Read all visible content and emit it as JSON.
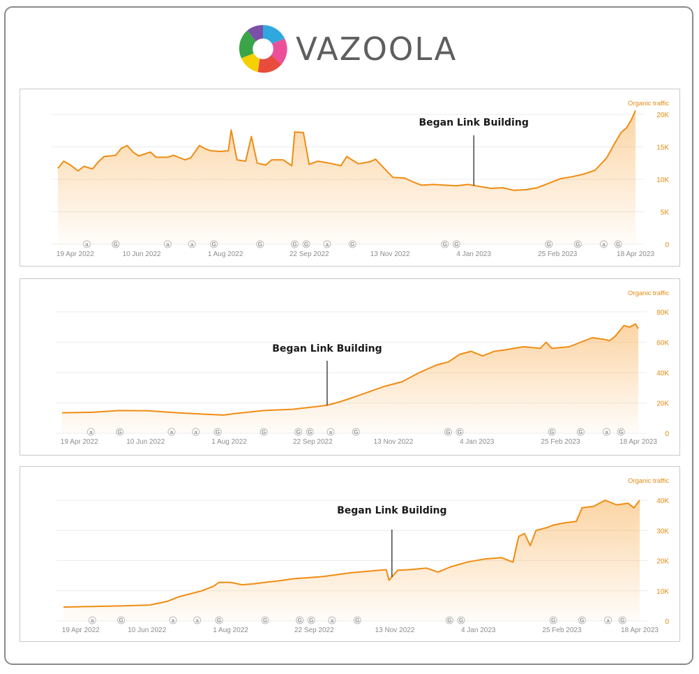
{
  "brand": {
    "name": "VAZOOLA",
    "logo_icon": "ring-logo-icon"
  },
  "colors": {
    "line": "#f08c12",
    "fill": "#f9b25a",
    "grid": "#ececec",
    "axis_text": "#e58a0f",
    "date_text": "#8c8c8c"
  },
  "chart_data": [
    {
      "type": "area",
      "metric_label": "Organic traffic",
      "ylim": [
        0,
        20000
      ],
      "y_ticks": [
        {
          "v": 20000,
          "label": "20K"
        },
        {
          "v": 15000,
          "label": "15K"
        },
        {
          "v": 10000,
          "label": "10K"
        },
        {
          "v": 5000,
          "label": "5K"
        },
        {
          "v": 0,
          "label": "0"
        }
      ],
      "x_ticks": [
        "19 Apr 2022",
        "10 Jun 2022",
        "1 Aug 2022",
        "22 Sep 2022",
        "13 Nov 2022",
        "4 Jan 2023",
        "25 Feb 2023",
        "18 Apr 2023"
      ],
      "badges": [
        "a",
        "G",
        "a",
        "a",
        "G",
        "G",
        "G",
        "G",
        "a",
        "G",
        "G",
        "G",
        "G",
        "G",
        "a",
        "G"
      ],
      "annotation": {
        "text": "Began Link Building",
        "x": 0.72
      },
      "series": [
        {
          "points": [
            [
              0,
              11700
            ],
            [
              0.01,
              12800
            ],
            [
              0.02,
              12300
            ],
            [
              0.035,
              11300
            ],
            [
              0.045,
              12000
            ],
            [
              0.06,
              11600
            ],
            [
              0.07,
              12700
            ],
            [
              0.08,
              13500
            ],
            [
              0.1,
              13700
            ],
            [
              0.11,
              14800
            ],
            [
              0.12,
              15200
            ],
            [
              0.13,
              14200
            ],
            [
              0.14,
              13600
            ],
            [
              0.16,
              14200
            ],
            [
              0.17,
              13400
            ],
            [
              0.19,
              13400
            ],
            [
              0.2,
              13700
            ],
            [
              0.22,
              13000
            ],
            [
              0.23,
              13300
            ],
            [
              0.245,
              15200
            ],
            [
              0.255,
              14700
            ],
            [
              0.265,
              14400
            ],
            [
              0.28,
              14300
            ],
            [
              0.295,
              14400
            ],
            [
              0.3,
              17600
            ],
            [
              0.31,
              13000
            ],
            [
              0.325,
              12800
            ],
            [
              0.335,
              16600
            ],
            [
              0.345,
              12500
            ],
            [
              0.36,
              12200
            ],
            [
              0.37,
              13000
            ],
            [
              0.39,
              13000
            ],
            [
              0.405,
              12100
            ],
            [
              0.41,
              17300
            ],
            [
              0.425,
              17200
            ],
            [
              0.435,
              12300
            ],
            [
              0.45,
              12800
            ],
            [
              0.47,
              12500
            ],
            [
              0.49,
              12100
            ],
            [
              0.5,
              13500
            ],
            [
              0.52,
              12400
            ],
            [
              0.54,
              12700
            ],
            [
              0.55,
              13100
            ],
            [
              0.57,
              11200
            ],
            [
              0.58,
              10300
            ],
            [
              0.6,
              10200
            ],
            [
              0.62,
              9400
            ],
            [
              0.63,
              9100
            ],
            [
              0.65,
              9200
            ],
            [
              0.67,
              9100
            ],
            [
              0.69,
              9000
            ],
            [
              0.71,
              9200
            ],
            [
              0.73,
              8900
            ],
            [
              0.75,
              8600
            ],
            [
              0.77,
              8700
            ],
            [
              0.79,
              8300
            ],
            [
              0.81,
              8400
            ],
            [
              0.83,
              8700
            ],
            [
              0.85,
              9400
            ],
            [
              0.87,
              10100
            ],
            [
              0.89,
              10400
            ],
            [
              0.91,
              10800
            ],
            [
              0.93,
              11400
            ],
            [
              0.95,
              13300
            ],
            [
              0.965,
              15700
            ],
            [
              0.975,
              17200
            ],
            [
              0.985,
              18000
            ],
            [
              0.993,
              19200
            ],
            [
              1,
              20600
            ]
          ]
        }
      ]
    },
    {
      "type": "area",
      "metric_label": "Organic traffic",
      "ylim": [
        0,
        80000
      ],
      "y_ticks": [
        {
          "v": 80000,
          "label": "80K"
        },
        {
          "v": 60000,
          "label": "60K"
        },
        {
          "v": 40000,
          "label": "40K"
        },
        {
          "v": 20000,
          "label": "20K"
        },
        {
          "v": 0,
          "label": "0"
        }
      ],
      "x_ticks": [
        "19 Apr 2022",
        "10 Jun 2022",
        "1 Aug 2022",
        "22 Sep 2022",
        "13 Nov 2022",
        "4 Jan 2023",
        "25 Feb 2023",
        "18 Apr 2023"
      ],
      "badges": [
        "a",
        "G",
        "a",
        "a",
        "G",
        "G",
        "G",
        "G",
        "a",
        "G",
        "G",
        "G",
        "G",
        "G",
        "a",
        "G"
      ],
      "annotation": {
        "text": "Began Link Building",
        "x": 0.46
      },
      "series": [
        {
          "points": [
            [
              0,
              13500
            ],
            [
              0.05,
              13800
            ],
            [
              0.1,
              15000
            ],
            [
              0.15,
              14800
            ],
            [
              0.2,
              13500
            ],
            [
              0.25,
              12500
            ],
            [
              0.28,
              12000
            ],
            [
              0.3,
              13000
            ],
            [
              0.35,
              15000
            ],
            [
              0.4,
              15800
            ],
            [
              0.44,
              17500
            ],
            [
              0.46,
              18500
            ],
            [
              0.48,
              20500
            ],
            [
              0.5,
              23000
            ],
            [
              0.53,
              27000
            ],
            [
              0.56,
              31000
            ],
            [
              0.59,
              34000
            ],
            [
              0.62,
              40000
            ],
            [
              0.65,
              45000
            ],
            [
              0.67,
              47000
            ],
            [
              0.69,
              52000
            ],
            [
              0.71,
              54000
            ],
            [
              0.73,
              51000
            ],
            [
              0.75,
              54000
            ],
            [
              0.77,
              55000
            ],
            [
              0.8,
              57000
            ],
            [
              0.83,
              56000
            ],
            [
              0.84,
              60000
            ],
            [
              0.85,
              56000
            ],
            [
              0.88,
              57000
            ],
            [
              0.9,
              60000
            ],
            [
              0.92,
              63000
            ],
            [
              0.94,
              62000
            ],
            [
              0.95,
              61000
            ],
            [
              0.96,
              64000
            ],
            [
              0.975,
              71000
            ],
            [
              0.985,
              70000
            ],
            [
              0.995,
              72000
            ],
            [
              1,
              69000
            ]
          ]
        }
      ]
    },
    {
      "type": "area",
      "metric_label": "Organic traffic",
      "ylim": [
        0,
        40000
      ],
      "y_ticks": [
        {
          "v": 40000,
          "label": "40K"
        },
        {
          "v": 30000,
          "label": "30K"
        },
        {
          "v": 20000,
          "label": "20K"
        },
        {
          "v": 10000,
          "label": "10K"
        },
        {
          "v": 0,
          "label": "0"
        }
      ],
      "x_ticks": [
        "19 Apr 2022",
        "10 Jun 2022",
        "1 Aug 2022",
        "22 Sep 2022",
        "13 Nov 2022",
        "4 Jan 2023",
        "25 Feb 2023",
        "18 Apr 2023"
      ],
      "badges": [
        "a",
        "G",
        "a",
        "a",
        "G",
        "G",
        "G",
        "G",
        "a",
        "G",
        "G",
        "G",
        "G",
        "G",
        "a",
        "G"
      ],
      "annotation": {
        "text": "Began Link Building",
        "x": 0.57
      },
      "series": [
        {
          "points": [
            [
              0,
              4600
            ],
            [
              0.05,
              4800
            ],
            [
              0.1,
              5000
            ],
            [
              0.15,
              5300
            ],
            [
              0.18,
              6500
            ],
            [
              0.2,
              8000
            ],
            [
              0.22,
              9000
            ],
            [
              0.24,
              10000
            ],
            [
              0.26,
              11500
            ],
            [
              0.27,
              12800
            ],
            [
              0.29,
              12800
            ],
            [
              0.31,
              12000
            ],
            [
              0.33,
              12300
            ],
            [
              0.35,
              12800
            ],
            [
              0.37,
              13200
            ],
            [
              0.4,
              14000
            ],
            [
              0.42,
              14300
            ],
            [
              0.45,
              14700
            ],
            [
              0.48,
              15500
            ],
            [
              0.5,
              16000
            ],
            [
              0.53,
              16500
            ],
            [
              0.56,
              17000
            ],
            [
              0.565,
              13500
            ],
            [
              0.58,
              16800
            ],
            [
              0.6,
              17000
            ],
            [
              0.63,
              17500
            ],
            [
              0.65,
              16200
            ],
            [
              0.67,
              17800
            ],
            [
              0.7,
              19500
            ],
            [
              0.73,
              20500
            ],
            [
              0.76,
              21000
            ],
            [
              0.78,
              19500
            ],
            [
              0.79,
              28000
            ],
            [
              0.8,
              29000
            ],
            [
              0.81,
              25000
            ],
            [
              0.82,
              30000
            ],
            [
              0.84,
              31000
            ],
            [
              0.85,
              31800
            ],
            [
              0.87,
              32500
            ],
            [
              0.89,
              33000
            ],
            [
              0.9,
              37500
            ],
            [
              0.92,
              38000
            ],
            [
              0.94,
              40000
            ],
            [
              0.96,
              38500
            ],
            [
              0.98,
              39000
            ],
            [
              0.99,
              37500
            ],
            [
              1,
              40000
            ]
          ]
        }
      ]
    }
  ]
}
